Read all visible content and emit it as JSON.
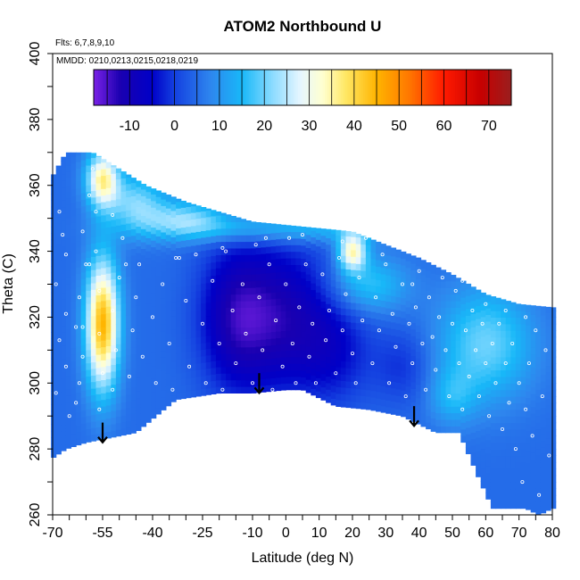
{
  "chart_data": {
    "type": "heatmap",
    "title": "ATOM2 Northbound U",
    "notes": [
      "Flts: 6,7,8,9,10",
      "MMDD: 0210,0213,0215,0218,0219"
    ],
    "xlabel": "Latitude (deg N)",
    "ylabel": "Theta (C)",
    "xlim": [
      -70,
      80
    ],
    "ylim": [
      260,
      400
    ],
    "x_ticks": [
      -70,
      -55,
      -40,
      -25,
      -10,
      0,
      10,
      20,
      30,
      40,
      50,
      60,
      70,
      80
    ],
    "y_ticks": [
      260,
      280,
      300,
      320,
      340,
      360,
      380,
      400
    ],
    "colorbar": {
      "range": [
        -18,
        75
      ],
      "ticks": [
        -10,
        0,
        10,
        20,
        30,
        40,
        50,
        60,
        70
      ],
      "colors": [
        {
          "v": -18,
          "c": "#7a22e6"
        },
        {
          "v": -12,
          "c": "#1a00b0"
        },
        {
          "v": -5,
          "c": "#0000c8"
        },
        {
          "v": 0,
          "c": "#1440e0"
        },
        {
          "v": 8,
          "c": "#2e86ee"
        },
        {
          "v": 15,
          "c": "#18b8f8"
        },
        {
          "v": 22,
          "c": "#8edcff"
        },
        {
          "v": 28,
          "c": "#e6f6ff"
        },
        {
          "v": 33,
          "c": "#ffffd0"
        },
        {
          "v": 38,
          "c": "#ffe866"
        },
        {
          "v": 45,
          "c": "#ffb400"
        },
        {
          "v": 52,
          "c": "#ff7a00"
        },
        {
          "v": 60,
          "c": "#ff1a00"
        },
        {
          "v": 68,
          "c": "#c80000"
        },
        {
          "v": 75,
          "c": "#9a1e1e"
        }
      ]
    },
    "domain_top": [
      {
        "lat": -70.5,
        "theta": 362
      },
      {
        "lat": -66,
        "theta": 370
      },
      {
        "lat": -58,
        "theta": 370
      },
      {
        "lat": -50,
        "theta": 365
      },
      {
        "lat": -42,
        "theta": 360
      },
      {
        "lat": -30,
        "theta": 355
      },
      {
        "lat": -20,
        "theta": 352
      },
      {
        "lat": -10,
        "theta": 349
      },
      {
        "lat": 0,
        "theta": 348
      },
      {
        "lat": 10,
        "theta": 347
      },
      {
        "lat": 20,
        "theta": 346
      },
      {
        "lat": 30,
        "theta": 342
      },
      {
        "lat": 40,
        "theta": 338
      },
      {
        "lat": 50,
        "theta": 333
      },
      {
        "lat": 60,
        "theta": 327
      },
      {
        "lat": 70,
        "theta": 324
      },
      {
        "lat": 80,
        "theta": 323
      }
    ],
    "domain_bottom": [
      {
        "lat": -70.5,
        "theta": 277
      },
      {
        "lat": -66,
        "theta": 280
      },
      {
        "lat": -60,
        "theta": 282
      },
      {
        "lat": -55,
        "theta": 283
      },
      {
        "lat": -45,
        "theta": 285
      },
      {
        "lat": -33,
        "theta": 295
      },
      {
        "lat": -20,
        "theta": 297
      },
      {
        "lat": -10,
        "theta": 297
      },
      {
        "lat": 0,
        "theta": 298
      },
      {
        "lat": 5,
        "theta": 298
      },
      {
        "lat": 15,
        "theta": 293
      },
      {
        "lat": 25,
        "theta": 292
      },
      {
        "lat": 35,
        "theta": 290
      },
      {
        "lat": 45,
        "theta": 285
      },
      {
        "lat": 52,
        "theta": 285
      },
      {
        "lat": 58,
        "theta": 271
      },
      {
        "lat": 62,
        "theta": 262
      },
      {
        "lat": 72,
        "theta": 262
      },
      {
        "lat": 76,
        "theta": 260
      },
      {
        "lat": 80,
        "theta": 262
      }
    ],
    "field": {
      "background": 5,
      "features": [
        {
          "lat": -55,
          "theta": 318,
          "slat": 3.5,
          "stheta": 14,
          "amp": 40
        },
        {
          "lat": -55,
          "theta": 362,
          "slat": 3.5,
          "stheta": 6,
          "amp": 30
        },
        {
          "lat": -45,
          "theta": 355,
          "slat": 6,
          "stheta": 6,
          "amp": 15
        },
        {
          "lat": -30,
          "theta": 350,
          "slat": 9,
          "stheta": 4,
          "amp": 15
        },
        {
          "lat": 0,
          "theta": 347,
          "slat": 25,
          "stheta": 3,
          "amp": 12
        },
        {
          "lat": 20,
          "theta": 340,
          "slat": 3,
          "stheta": 4,
          "amp": 28
        },
        {
          "lat": 25,
          "theta": 330,
          "slat": 8,
          "stheta": 6,
          "amp": 12
        },
        {
          "lat": 60,
          "theta": 312,
          "slat": 10,
          "stheta": 12,
          "amp": 15
        },
        {
          "lat": 50,
          "theta": 296,
          "slat": 5,
          "stheta": 6,
          "amp": 8
        },
        {
          "lat": -15,
          "theta": 320,
          "slat": 8,
          "stheta": 16,
          "amp": -15
        },
        {
          "lat": 0,
          "theta": 320,
          "slat": 10,
          "stheta": 16,
          "amp": -14
        },
        {
          "lat": 15,
          "theta": 310,
          "slat": 8,
          "stheta": 12,
          "amp": -8
        },
        {
          "lat": 35,
          "theta": 305,
          "slat": 6,
          "stheta": 8,
          "amp": -6
        }
      ]
    },
    "arrows": [
      {
        "lat": -55,
        "theta_start": 288,
        "theta_end": 282
      },
      {
        "lat": -8,
        "theta_start": 303,
        "theta_end": 297
      },
      {
        "lat": 38.5,
        "theta_start": 293,
        "theta_end": 287
      }
    ],
    "obs_points": [
      [
        -68,
        352
      ],
      [
        -67,
        345
      ],
      [
        -66,
        339
      ],
      [
        -69,
        330
      ],
      [
        -66,
        321
      ],
      [
        -68,
        313
      ],
      [
        -66,
        305
      ],
      [
        -69,
        297
      ],
      [
        -65,
        290
      ],
      [
        -63,
        294
      ],
      [
        -62,
        300
      ],
      [
        -61,
        308
      ],
      [
        -63,
        317
      ],
      [
        -62,
        326
      ],
      [
        -60,
        336
      ],
      [
        -61,
        346
      ],
      [
        -59,
        357
      ],
      [
        -58,
        365
      ],
      [
        -57,
        352
      ],
      [
        -57,
        340
      ],
      [
        -56,
        328
      ],
      [
        -56,
        315
      ],
      [
        -55,
        303
      ],
      [
        -56,
        292
      ],
      [
        -52,
        298
      ],
      [
        -51,
        310
      ],
      [
        -52,
        322
      ],
      [
        -50,
        332
      ],
      [
        -49,
        344
      ],
      [
        -47,
        302
      ],
      [
        -46,
        316
      ],
      [
        -45,
        326
      ],
      [
        -44,
        336
      ],
      [
        -43,
        308
      ],
      [
        -40,
        320
      ],
      [
        -39,
        300
      ],
      [
        -37,
        330
      ],
      [
        -35,
        312
      ],
      [
        -34,
        298
      ],
      [
        -32,
        338
      ],
      [
        -30,
        325
      ],
      [
        -29,
        305
      ],
      [
        -27,
        339
      ],
      [
        -25,
        318
      ],
      [
        -24,
        300
      ],
      [
        -22,
        331
      ],
      [
        -20,
        312
      ],
      [
        -19,
        298
      ],
      [
        -18,
        340
      ],
      [
        -16,
        322
      ],
      [
        -15,
        306
      ],
      [
        -13,
        330
      ],
      [
        -12,
        315
      ],
      [
        -10,
        300
      ],
      [
        -9,
        342
      ],
      [
        -8,
        326
      ],
      [
        -7,
        310
      ],
      [
        -5,
        336
      ],
      [
        -4,
        298
      ],
      [
        -3,
        319
      ],
      [
        -1,
        305
      ],
      [
        0,
        330
      ],
      [
        1,
        344
      ],
      [
        2,
        312
      ],
      [
        3,
        300
      ],
      [
        4,
        323
      ],
      [
        6,
        336
      ],
      [
        7,
        308
      ],
      [
        8,
        318
      ],
      [
        9,
        300
      ],
      [
        11,
        333
      ],
      [
        12,
        313
      ],
      [
        13,
        322
      ],
      [
        15,
        303
      ],
      [
        16,
        338
      ],
      [
        17,
        316
      ],
      [
        18,
        327
      ],
      [
        20,
        309
      ],
      [
        21,
        300
      ],
      [
        22,
        332
      ],
      [
        23,
        319
      ],
      [
        24,
        344
      ],
      [
        26,
        306
      ],
      [
        27,
        326
      ],
      [
        28,
        316
      ],
      [
        30,
        336
      ],
      [
        31,
        300
      ],
      [
        32,
        321
      ],
      [
        33,
        311
      ],
      [
        35,
        330
      ],
      [
        36,
        296
      ],
      [
        37,
        318
      ],
      [
        38,
        306
      ],
      [
        39,
        323
      ],
      [
        40,
        334
      ],
      [
        41,
        312
      ],
      [
        42,
        298
      ],
      [
        43,
        326
      ],
      [
        44,
        314
      ],
      [
        45,
        304
      ],
      [
        46,
        320
      ],
      [
        47,
        332
      ],
      [
        48,
        310
      ],
      [
        49,
        296
      ],
      [
        50,
        318
      ],
      [
        51,
        328
      ],
      [
        52,
        306
      ],
      [
        53,
        292
      ],
      [
        54,
        316
      ],
      [
        55,
        302
      ],
      [
        56,
        322
      ],
      [
        57,
        310
      ],
      [
        58,
        296
      ],
      [
        59,
        318
      ],
      [
        60,
        306
      ],
      [
        61,
        290
      ],
      [
        62,
        312
      ],
      [
        63,
        300
      ],
      [
        64,
        318
      ],
      [
        65,
        286
      ],
      [
        66,
        306
      ],
      [
        67,
        294
      ],
      [
        68,
        312
      ],
      [
        69,
        280
      ],
      [
        70,
        300
      ],
      [
        71,
        270
      ],
      [
        72,
        292
      ],
      [
        73,
        306
      ],
      [
        74,
        284
      ],
      [
        75,
        316
      ],
      [
        76,
        266
      ],
      [
        77,
        296
      ],
      [
        78,
        310
      ],
      [
        79,
        278
      ],
      [
        72,
        320
      ],
      [
        66,
        322
      ],
      [
        60,
        324
      ],
      [
        53,
        331
      ],
      [
        47,
        336
      ],
      [
        38,
        330
      ],
      [
        29,
        339
      ],
      [
        17,
        343
      ],
      [
        5,
        345
      ],
      [
        -6,
        344
      ],
      [
        -19,
        341
      ],
      [
        -33,
        338
      ],
      [
        -48,
        336
      ],
      [
        -52,
        351
      ],
      [
        -59,
        336
      ],
      [
        -61,
        317
      ]
    ]
  }
}
